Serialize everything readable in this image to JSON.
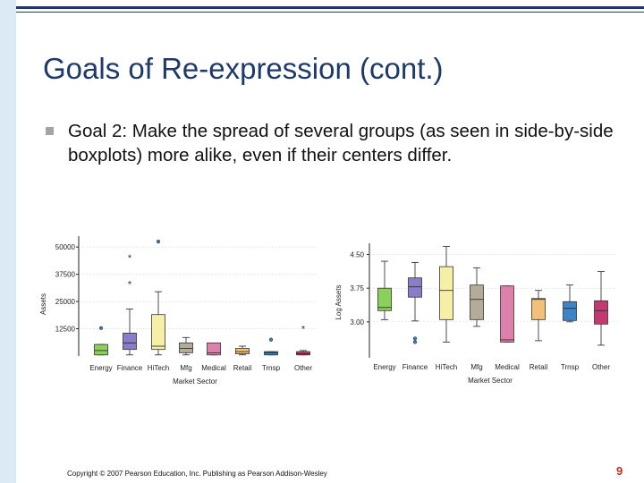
{
  "slide": {
    "title": "Goals of Re-expression (cont.)",
    "bullet": "Goal 2: Make the spread of several groups (as seen in side-by-side boxplots) more alike, even if their centers differ.",
    "footer": "Copyright © 2007 Pearson Education, Inc. Publishing as Pearson Addison-Wesley",
    "page_number": "9"
  },
  "colors": {
    "title": "#1e3a6a",
    "page_number": "#c03018",
    "Energy": "#8ccf5a",
    "Finance": "#8a7cc8",
    "HiTech": "#f6f0a6",
    "Mfg": "#b2ac98",
    "Medical": "#dc82aa",
    "Retail": "#f4c078",
    "Trnsp": "#3c84c4",
    "Other": "#c43a70"
  },
  "chart_data": [
    {
      "type": "boxplot",
      "xlabel": "Market Sector",
      "ylabel": "Assets",
      "categories": [
        "Energy",
        "Finance",
        "HiTech",
        "Mfg",
        "Medical",
        "Retail",
        "Trnsp",
        "Other"
      ],
      "yticks": [
        "50000",
        "37500",
        "25000",
        "12500"
      ],
      "yticks_values": [
        50000,
        37500,
        25000,
        12500
      ],
      "ylim": [
        0,
        55000
      ],
      "boxes": [
        {
          "min": 500,
          "q1": 500,
          "median": 2500,
          "q3": 5300,
          "max": 5300,
          "outliers": [
            12800
          ]
        },
        {
          "min": 500,
          "q1": 3000,
          "median": 6000,
          "q3": 10500,
          "max": 21500,
          "outliers": [
            33500,
            45500
          ]
        },
        {
          "min": 500,
          "q1": 3000,
          "median": 4500,
          "q3": 19000,
          "max": 29500,
          "outliers": [
            52500
          ]
        },
        {
          "min": 500,
          "q1": 1500,
          "median": 3500,
          "q3": 6000,
          "max": 8500,
          "outliers": []
        },
        {
          "min": 500,
          "q1": 500,
          "median": 1500,
          "q3": 6000,
          "max": 6000,
          "outliers": []
        },
        {
          "min": 500,
          "q1": 1000,
          "median": 2000,
          "q3": 3500,
          "max": 4500,
          "outliers": []
        },
        {
          "min": 500,
          "q1": 500,
          "median": 1500,
          "q3": 2000,
          "max": 2000,
          "outliers": [
            7500
          ]
        },
        {
          "min": 500,
          "q1": 500,
          "median": 1000,
          "q3": 2000,
          "max": 2500,
          "outliers": [
            13000
          ]
        }
      ],
      "outlier_markers": {
        "Energy": [
          "o"
        ],
        "Finance": [
          "*",
          "*"
        ],
        "HiTech": [
          "o"
        ],
        "Trnsp": [
          "o"
        ],
        "Other": [
          "*"
        ]
      }
    },
    {
      "type": "boxplot",
      "xlabel": "Market Sector",
      "ylabel": "Log Assets",
      "categories": [
        "Energy",
        "Finance",
        "HiTech",
        "Mfg",
        "Medical",
        "Retail",
        "Trnsp",
        "Other"
      ],
      "yticks": [
        "4.50",
        "3.75",
        "3.00"
      ],
      "yticks_values": [
        4.5,
        3.75,
        3.0
      ],
      "ylim": [
        2.2,
        4.75
      ],
      "boxes": [
        {
          "min": 3.05,
          "q1": 3.25,
          "median": 3.32,
          "q3": 3.75,
          "max": 4.35,
          "outliers": []
        },
        {
          "min": 3.02,
          "q1": 3.55,
          "median": 3.78,
          "q3": 3.98,
          "max": 4.32,
          "outliers": [
            2.63,
            2.55
          ]
        },
        {
          "min": 2.55,
          "q1": 3.05,
          "median": 3.7,
          "q3": 4.23,
          "max": 4.68,
          "outliers": []
        },
        {
          "min": 2.9,
          "q1": 3.05,
          "median": 3.5,
          "q3": 3.82,
          "max": 4.2,
          "outliers": []
        },
        {
          "min": 2.55,
          "q1": 2.55,
          "median": 2.6,
          "q3": 3.8,
          "max": 3.8,
          "outliers": []
        },
        {
          "min": 2.58,
          "q1": 3.05,
          "median": 3.5,
          "q3": 3.52,
          "max": 3.7,
          "outliers": []
        },
        {
          "min": 3.0,
          "q1": 3.03,
          "median": 3.3,
          "q3": 3.45,
          "max": 3.82,
          "outliers": []
        },
        {
          "min": 2.48,
          "q1": 2.95,
          "median": 3.25,
          "q3": 3.47,
          "max": 4.12,
          "outliers": []
        }
      ]
    }
  ]
}
